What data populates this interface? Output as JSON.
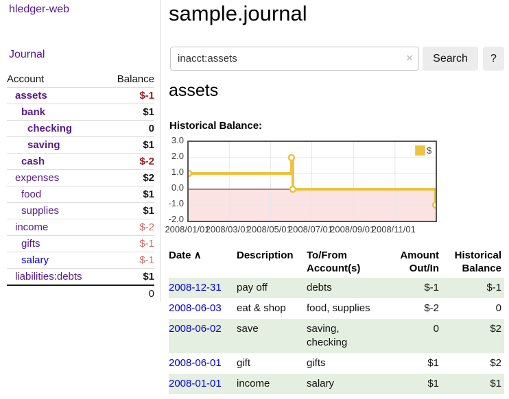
{
  "app": {
    "title": "hledger-web",
    "nav_journal": "Journal"
  },
  "sidebar": {
    "account_header": "Account",
    "balance_header": "Balance",
    "accounts": [
      {
        "name": "assets",
        "level": 0,
        "bold": true,
        "link_style": "purple",
        "balance": "$-1",
        "balance_style": "neg"
      },
      {
        "name": "bank",
        "level": 1,
        "bold": true,
        "link_style": "purple",
        "balance": "$1",
        "balance_style": ""
      },
      {
        "name": "checking",
        "level": 2,
        "bold": true,
        "link_style": "purple",
        "balance": "0",
        "balance_style": ""
      },
      {
        "name": "saving",
        "level": 2,
        "bold": true,
        "link_style": "purple",
        "balance": "$1",
        "balance_style": ""
      },
      {
        "name": "cash",
        "level": 1,
        "bold": true,
        "link_style": "purple",
        "balance": "$-2",
        "balance_style": "neg"
      },
      {
        "name": "expenses",
        "level": 0,
        "bold": false,
        "link_style": "purple",
        "balance": "$2",
        "balance_style": ""
      },
      {
        "name": "food",
        "level": 1,
        "bold": false,
        "link_style": "purple",
        "balance": "$1",
        "balance_style": ""
      },
      {
        "name": "supplies",
        "level": 1,
        "bold": false,
        "link_style": "purple",
        "balance": "$1",
        "balance_style": ""
      },
      {
        "name": "income",
        "level": 0,
        "bold": false,
        "link_style": "purple",
        "balance": "$-2",
        "balance_style": "soft"
      },
      {
        "name": "gifts",
        "level": 1,
        "bold": false,
        "link_style": "purple",
        "balance": "$-1",
        "balance_style": "soft"
      },
      {
        "name": "salary",
        "level": 1,
        "bold": false,
        "link_style": "blue",
        "balance": "$-1",
        "balance_style": "soft"
      },
      {
        "name": "liabilities:debts",
        "level": 0,
        "bold": false,
        "link_style": "purple",
        "balance": "$1",
        "balance_style": ""
      }
    ],
    "total": "0"
  },
  "main": {
    "title": "sample.journal",
    "search": {
      "value": "inacct:assets",
      "clear_icon": "×",
      "search_button": "Search",
      "help_button": "?"
    },
    "account_heading": "assets",
    "chart_label": "Historical Balance:"
  },
  "chart_data": {
    "type": "line",
    "title": "Historical Balance",
    "step": "after",
    "legend": [
      {
        "label": "$",
        "color": "#edc240"
      }
    ],
    "legend_position": "top-right",
    "x_min": "2008/01/01",
    "x_max": "2008/12/31",
    "ylim": [
      -2,
      3
    ],
    "y_ticks": [
      "3.0",
      "2.0",
      "1.0",
      "0.0",
      "-1.0",
      "-2.0"
    ],
    "x_ticks": [
      "2008/01/01",
      "2008/03/01",
      "2008/05/01",
      "2008/07/01",
      "2008/09/01",
      "2008/11/01"
    ],
    "points": [
      {
        "date": "2008/01/01",
        "value": 1
      },
      {
        "date": "2008/06/01",
        "value": 2
      },
      {
        "date": "2008/06/03",
        "value": 0
      },
      {
        "date": "2008/12/31",
        "value": -1
      }
    ],
    "grid": true,
    "line_color": "#edc240",
    "marker_fill": "#ffffff",
    "negative_region_color": "#fbe3e3",
    "zero_line_color": "#8b0000",
    "grid_color": "#e7e7e7",
    "border_color": "#545454"
  },
  "register": {
    "sort_icon": "∧",
    "headers": [
      {
        "lines": [
          "Date"
        ],
        "align": "left",
        "sortable": true
      },
      {
        "lines": [
          "Description"
        ],
        "align": "left",
        "sortable": false
      },
      {
        "lines": [
          "To/From",
          "Account(s)"
        ],
        "align": "left",
        "sortable": false
      },
      {
        "lines": [
          "Amount",
          "Out/In"
        ],
        "align": "right",
        "sortable": false
      },
      {
        "lines": [
          "Historical",
          "Balance"
        ],
        "align": "right",
        "sortable": false
      }
    ],
    "rows": [
      {
        "date": "2008-12-31",
        "description": "pay off",
        "accounts": "debts",
        "amount": "$-1",
        "amount_negative": true,
        "balance": "$-1",
        "balance_negative": true
      },
      {
        "date": "2008-06-03",
        "description": "eat & shop",
        "accounts": "food, supplies",
        "amount": "$-2",
        "amount_negative": true,
        "balance": "0",
        "balance_negative": false
      },
      {
        "date": "2008-06-02",
        "description": "save",
        "accounts": "saving, checking",
        "amount": "0",
        "amount_negative": false,
        "balance": "$2",
        "balance_negative": false
      },
      {
        "date": "2008-06-01",
        "description": "gift",
        "accounts": "gifts",
        "amount": "$1",
        "amount_negative": false,
        "balance": "$2",
        "balance_negative": false
      },
      {
        "date": "2008-01-01",
        "description": "income",
        "accounts": "salary",
        "amount": "$1",
        "amount_negative": false,
        "balance": "$1",
        "balance_negative": false
      }
    ]
  },
  "colors": {
    "link_purple": "#551a8b",
    "link_blue": "#0000dd",
    "negative_strong": "#952020",
    "negative_soft": "#c96e6e",
    "row_stripe_green": "#e4efe1",
    "button_bg": "#ececec"
  }
}
